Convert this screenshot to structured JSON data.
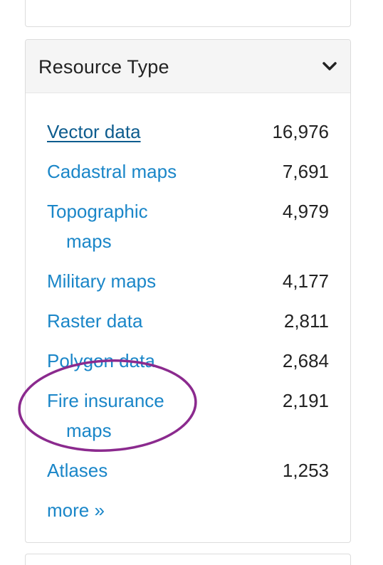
{
  "facet": {
    "title": "Resource Type",
    "items": [
      {
        "label": "Vector data",
        "count": "16,976",
        "selected": true
      },
      {
        "label": "Cadastral maps",
        "count": "7,691"
      },
      {
        "label_line1": "Topographic",
        "label_line2": "maps",
        "count": "4,979"
      },
      {
        "label": "Military maps",
        "count": "4,177"
      },
      {
        "label": "Raster data",
        "count": "2,811"
      },
      {
        "label": "Polygon data",
        "count": "2,684"
      },
      {
        "label_line1": "Fire insurance",
        "label_line2": "maps",
        "count": "2,191"
      },
      {
        "label": "Atlases",
        "count": "1,253"
      }
    ],
    "more_label": "more »"
  },
  "annotation": {
    "shape": "ellipse",
    "color": "#8b2a8e",
    "target": "Fire insurance maps"
  }
}
